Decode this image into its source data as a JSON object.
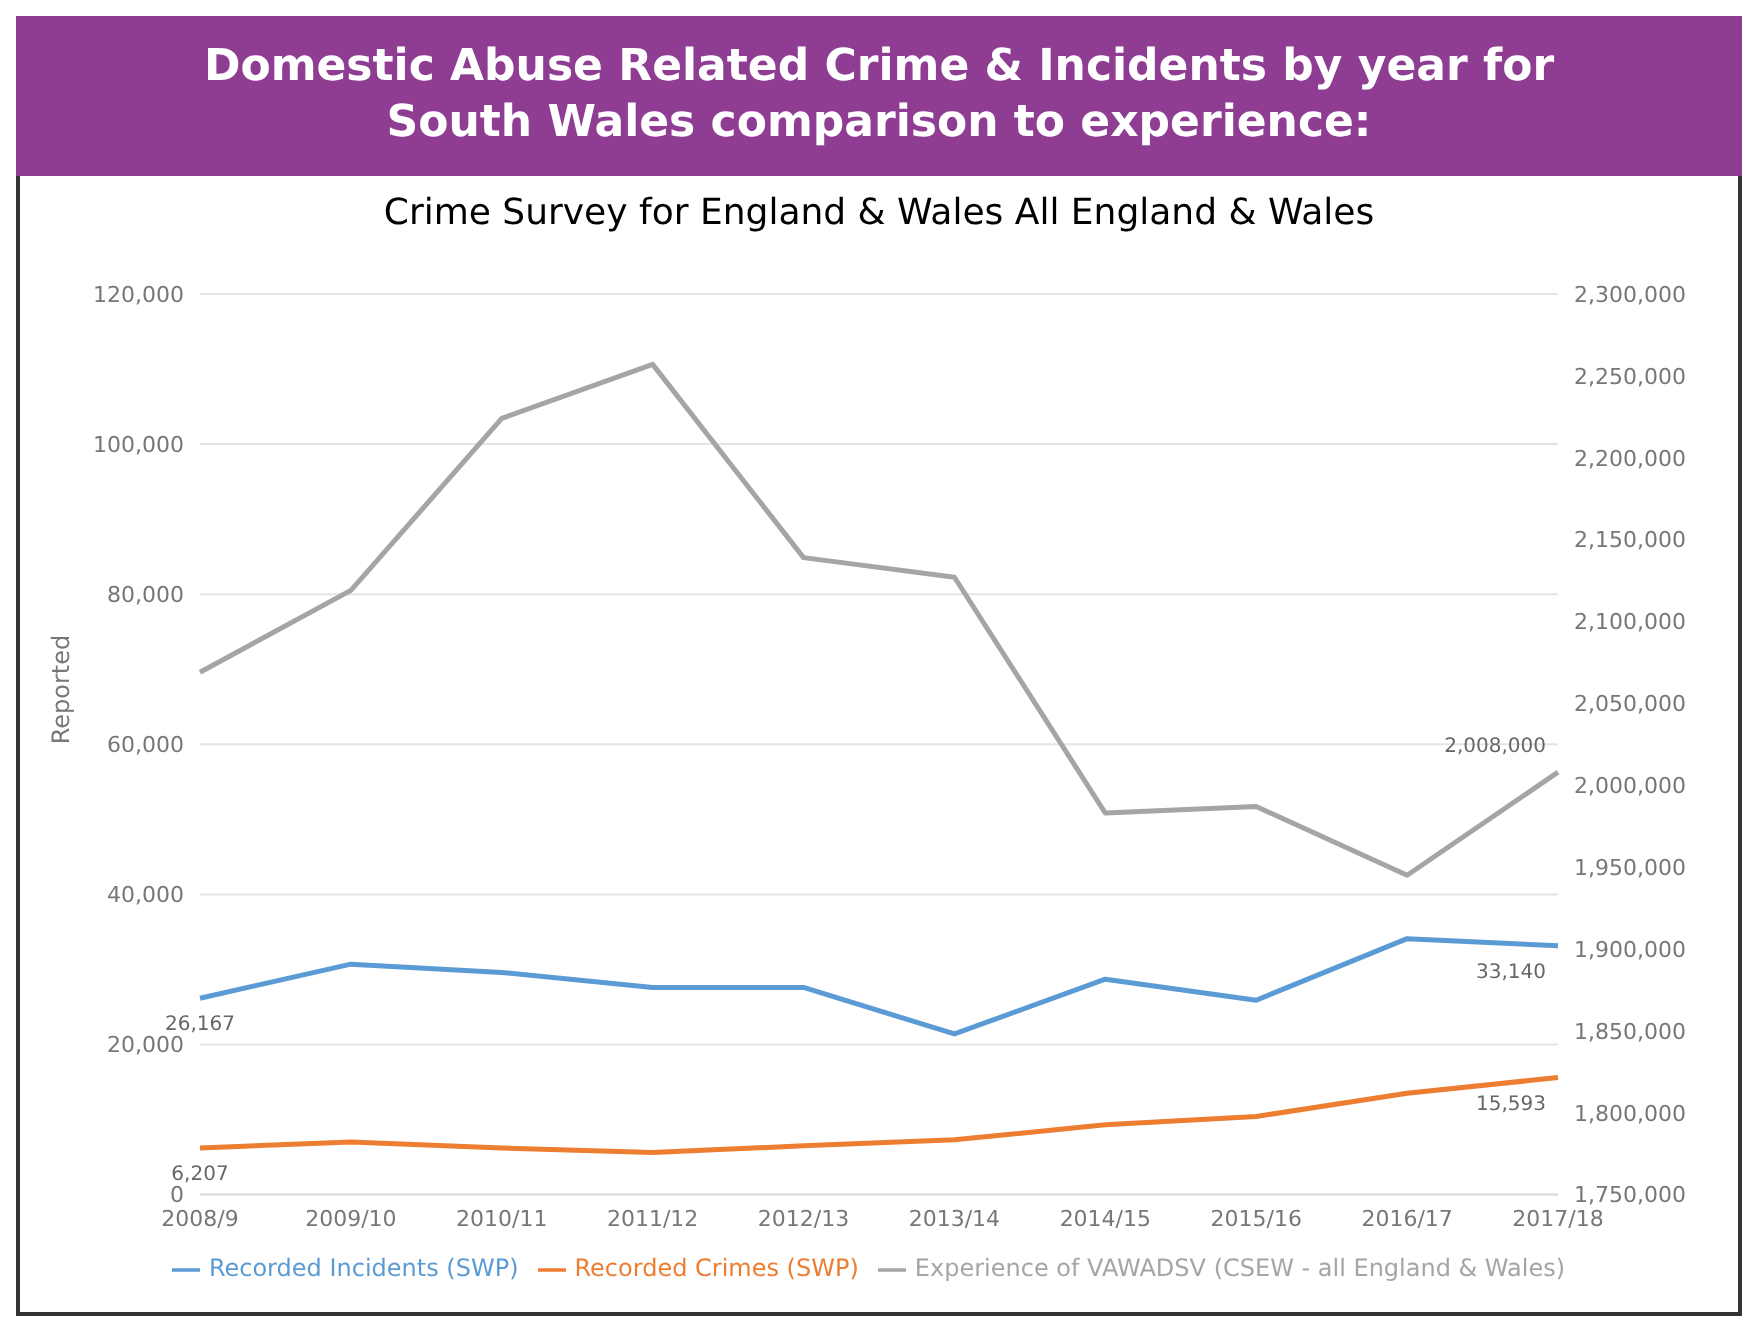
{
  "chart_data": {
    "type": "line",
    "title": "Domestic Abuse Related Crime & Incidents by year for South Wales comparison to experience:",
    "subtitle": "Crime Survey for England & Wales All England & Wales",
    "ylabel": "Reported",
    "categories": [
      "2008/9",
      "2009/10",
      "2010/11",
      "2011/12",
      "2012/13",
      "2013/14",
      "2014/15",
      "2015/16",
      "2016/17",
      "2017/18"
    ],
    "series": [
      {
        "name": "Recorded Incidents (SWP)",
        "color": "#5b9bd5",
        "values": [
          26167,
          30700,
          29600,
          27600,
          27600,
          21400,
          28700,
          25900,
          34100,
          33140
        ],
        "value_labels": [
          "26,167",
          null,
          null,
          null,
          null,
          null,
          null,
          null,
          null,
          "33,140"
        ]
      },
      {
        "name": "Recorded Crimes (SWP)",
        "color": "#ed7d31",
        "values": [
          6207,
          7000,
          6200,
          5600,
          6500,
          7300,
          9300,
          10400,
          13500,
          15593
        ],
        "value_labels": [
          "6,207",
          null,
          null,
          null,
          null,
          null,
          null,
          null,
          null,
          "15,593"
        ]
      },
      {
        "name": "Experience of VAWADSV (CSEW - all England & Wales)",
        "color": "#a5a5a5",
        "axis": "y2",
        "values": [
          2069000,
          2119000,
          2224000,
          2257000,
          2139000,
          2127000,
          1983000,
          1987000,
          1945000,
          2008000
        ],
        "value_labels": [
          null,
          null,
          null,
          null,
          null,
          null,
          null,
          null,
          null,
          "2,008,000"
        ]
      }
    ],
    "ylim": [
      0,
      120000
    ],
    "yticks": [
      {
        "value": 0,
        "label": "0"
      },
      {
        "value": 20000,
        "label": "20,000"
      },
      {
        "value": 40000,
        "label": "40,000"
      },
      {
        "value": 60000,
        "label": "60,000"
      },
      {
        "value": 80000,
        "label": "80,000"
      },
      {
        "value": 100000,
        "label": "100,000"
      },
      {
        "value": 120000,
        "label": "120,000"
      }
    ],
    "y2lim": [
      1750000,
      2300000
    ],
    "y2ticks": [
      {
        "value": 1750000,
        "label": "1,750,000"
      },
      {
        "value": 1800000,
        "label": "1,800,000"
      },
      {
        "value": 1850000,
        "label": "1,850,000"
      },
      {
        "value": 1900000,
        "label": "1,900,000"
      },
      {
        "value": 1950000,
        "label": "1,950,000"
      },
      {
        "value": 2000000,
        "label": "2,000,000"
      },
      {
        "value": 2050000,
        "label": "2,050,000"
      },
      {
        "value": 2100000,
        "label": "2,100,000"
      },
      {
        "value": 2150000,
        "label": "2,150,000"
      },
      {
        "value": 2200000,
        "label": "2,200,000"
      },
      {
        "value": 2250000,
        "label": "2,250,000"
      },
      {
        "value": 2300000,
        "label": "2,300,000"
      }
    ],
    "grid": "y",
    "legend": "bottom",
    "marker": "none"
  }
}
